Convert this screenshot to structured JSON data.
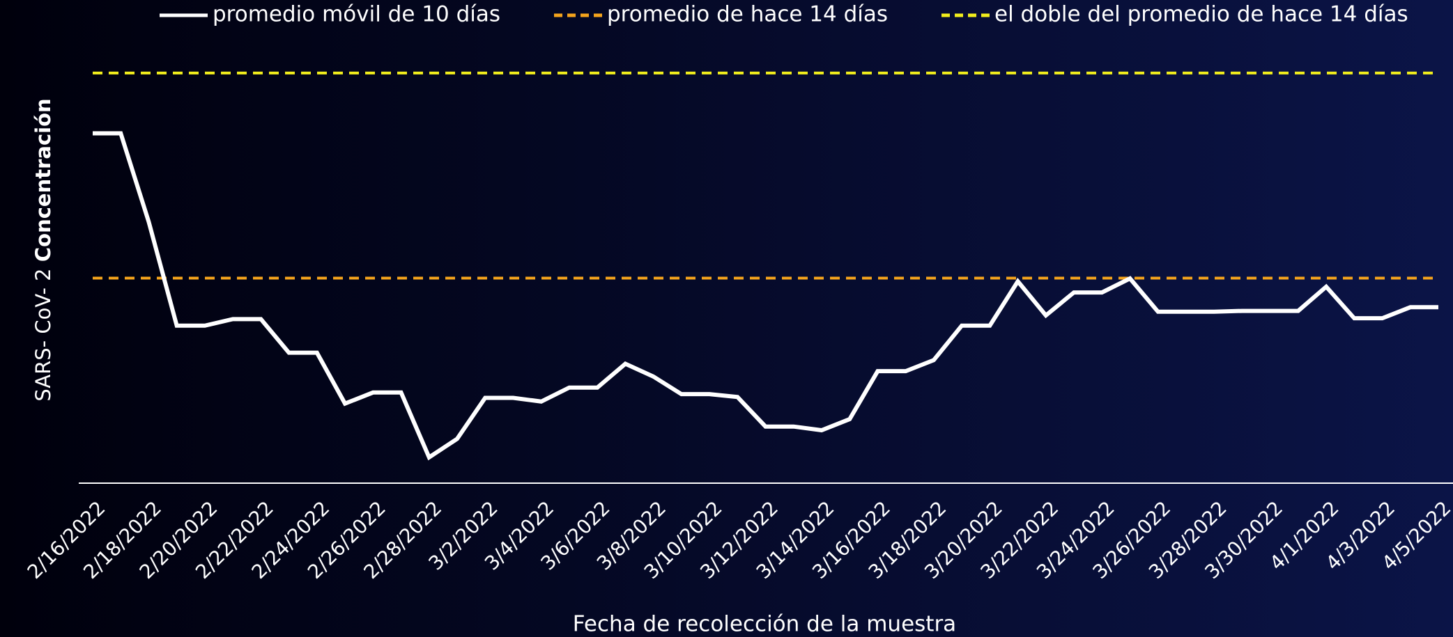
{
  "chart_data": {
    "type": "line",
    "categories": [
      "2/16/2022",
      null,
      "2/18/2022",
      null,
      "2/20/2022",
      null,
      "2/22/2022",
      null,
      "2/24/2022",
      null,
      "2/26/2022",
      null,
      "2/28/2022",
      null,
      "3/2/2022",
      null,
      "3/4/2022",
      null,
      "3/6/2022",
      null,
      "3/8/2022",
      null,
      "3/10/2022",
      null,
      "3/12/2022",
      null,
      "3/14/2022",
      null,
      "3/16/2022",
      null,
      "3/18/2022",
      null,
      "3/20/2022",
      null,
      "3/22/2022",
      null,
      "3/24/2022",
      null,
      "3/26/2022",
      null,
      "3/28/2022",
      null,
      "3/30/2022",
      null,
      "4/1/2022",
      null,
      "4/3/2022",
      null,
      "4/5/2022"
    ],
    "series": [
      {
        "name": "promedio móvil de 10 días",
        "color": "#ffffff",
        "values": [
          85.3,
          85.3,
          63.7,
          38.4,
          38.4,
          40.0,
          40.0,
          31.8,
          31.8,
          19.4,
          22.1,
          22.1,
          6.3,
          10.8,
          20.8,
          20.8,
          19.9,
          23.3,
          23.3,
          29.1,
          26.0,
          21.7,
          21.7,
          21.0,
          13.8,
          13.8,
          12.9,
          15.6,
          27.3,
          27.3,
          30.0,
          38.4,
          38.4,
          49.2,
          40.9,
          46.5,
          46.5,
          49.9,
          41.8,
          41.8,
          41.8,
          42.0,
          42.0,
          42.0,
          47.9,
          40.2,
          40.2,
          42.9,
          42.9
        ]
      }
    ],
    "reference_lines": [
      {
        "name": "promedio de hace 14 días",
        "color": "#f5a41c",
        "value": 50
      },
      {
        "name": "el doble del promedio de hace 14 días",
        "color": "#f2ee1c",
        "value": 100
      }
    ],
    "ylim": [
      0,
      110
    ],
    "xlabel": "Fecha de recolección de la muestra",
    "ylabel": [
      "SARS- CoV- 2",
      "Concentración"
    ]
  }
}
